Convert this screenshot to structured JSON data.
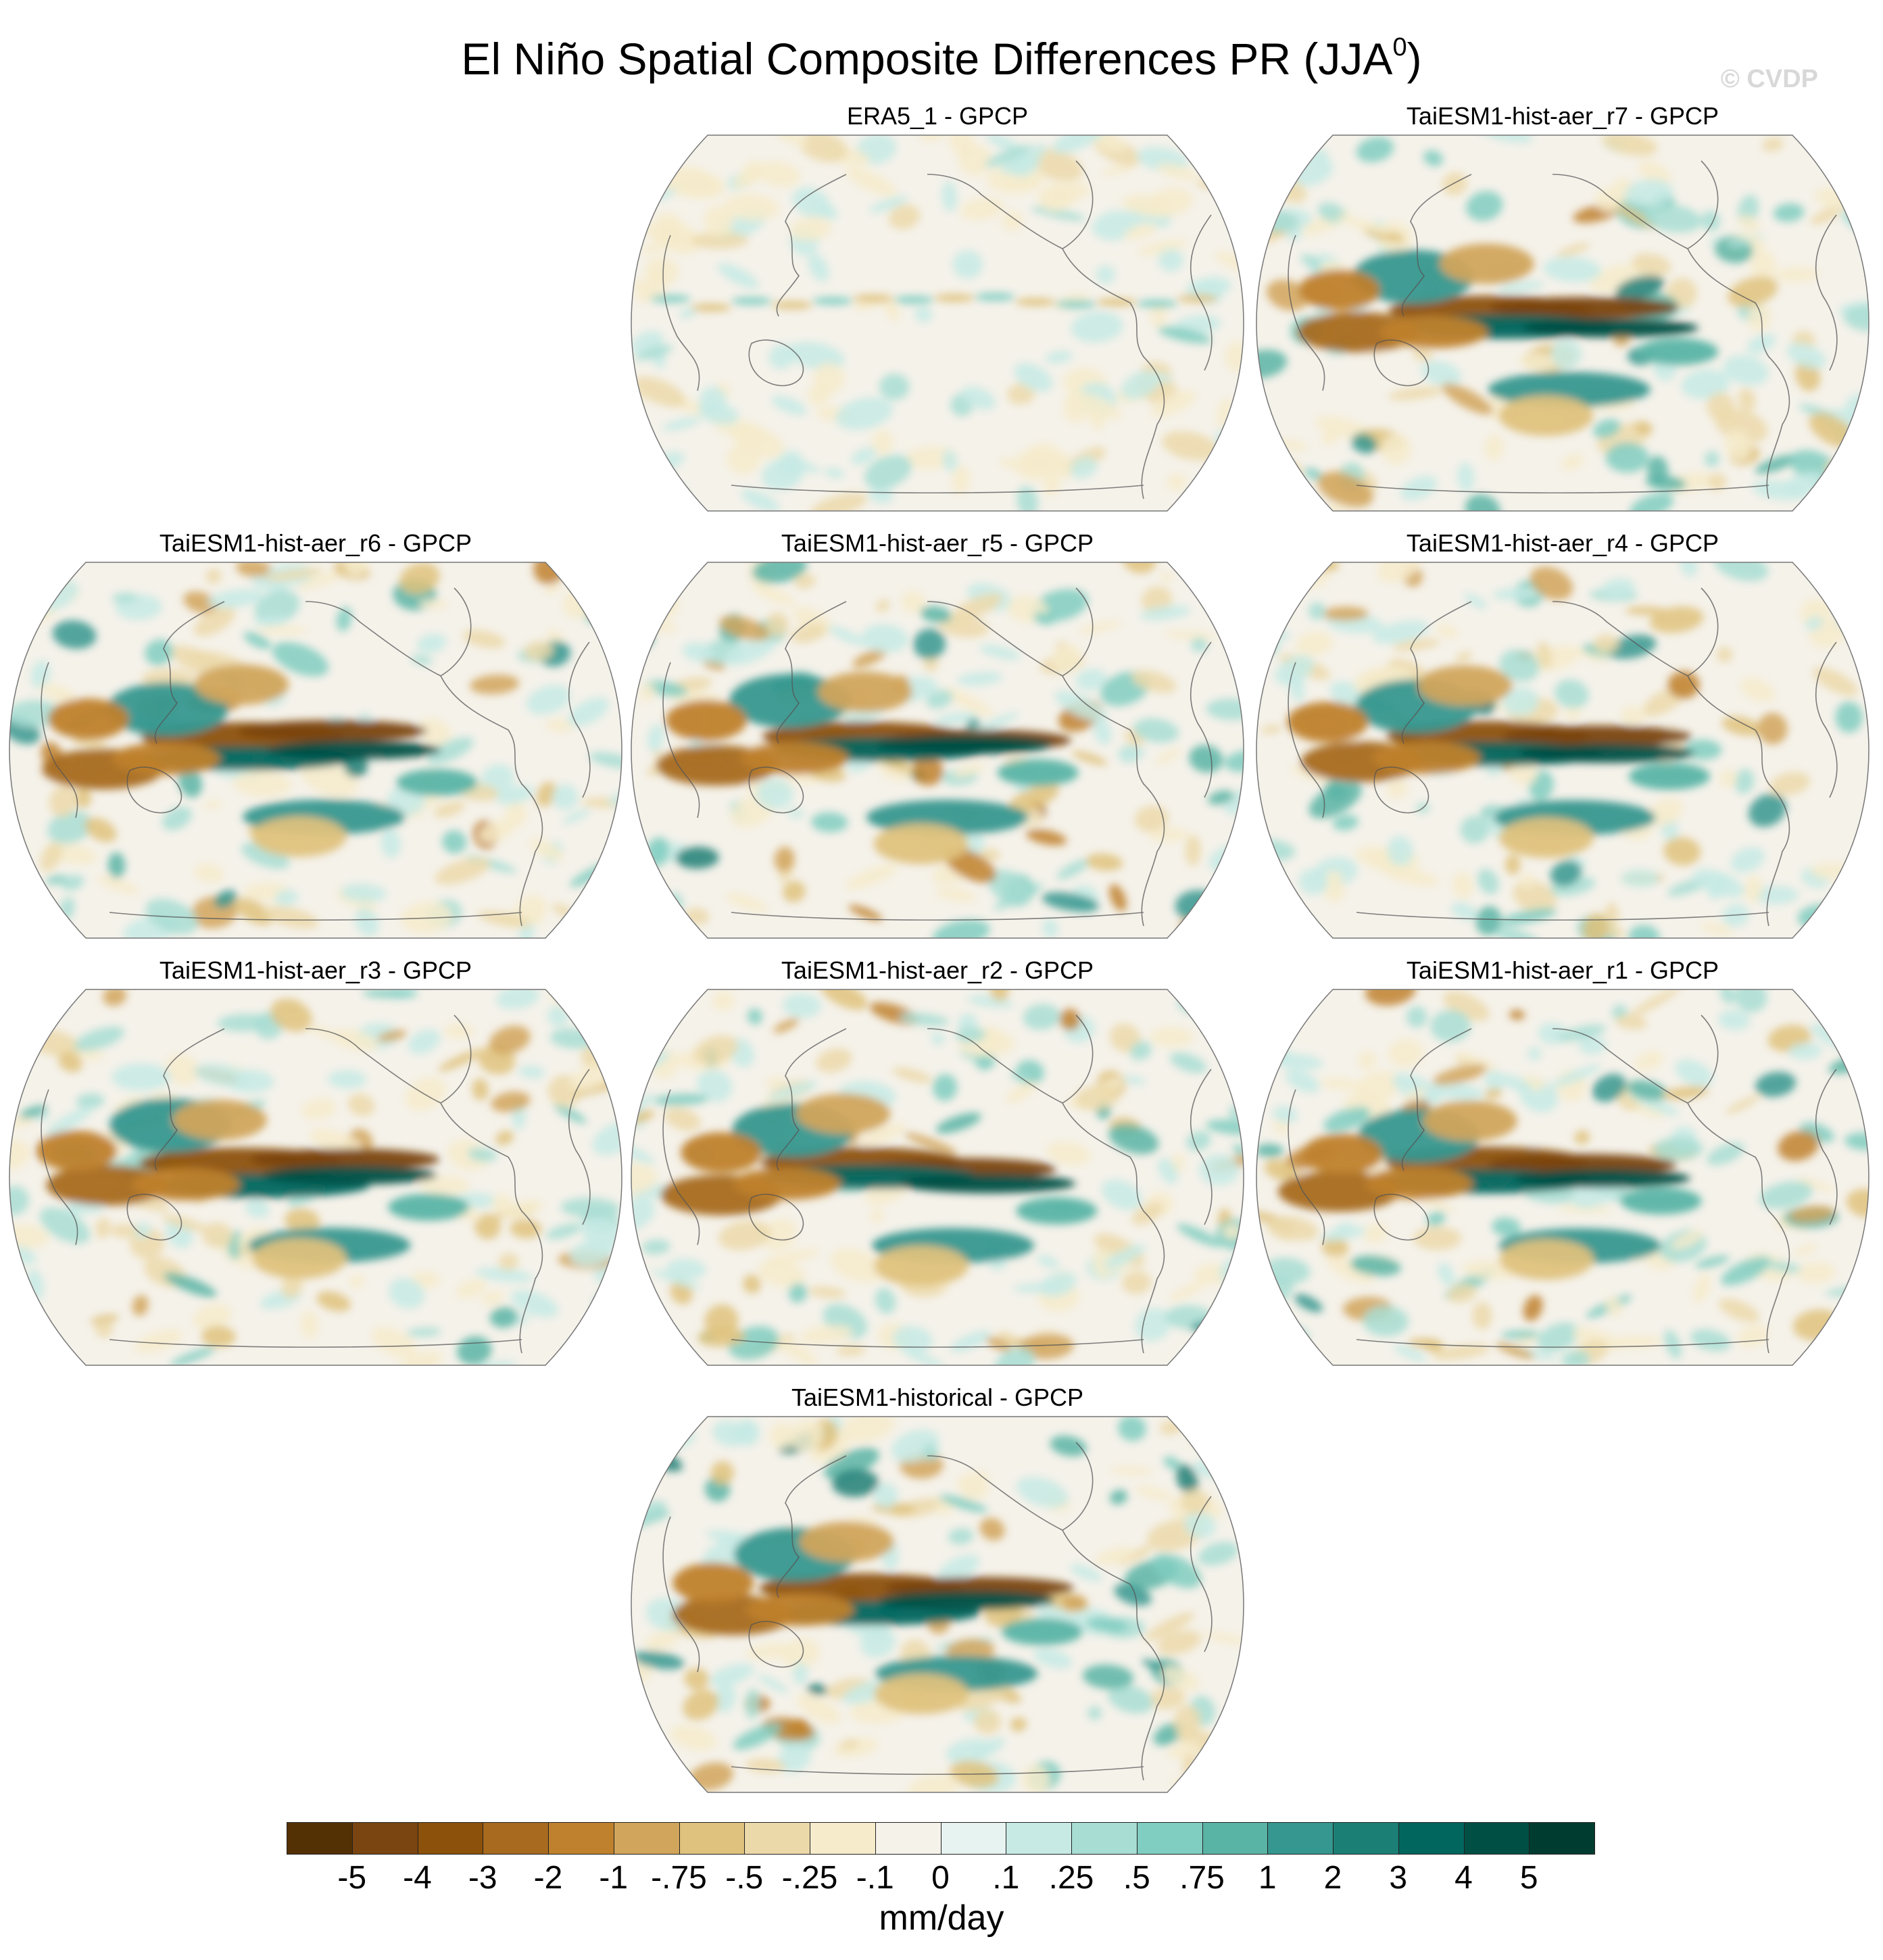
{
  "title": {
    "main": "El Niño Spatial Composite Differences PR (JJA",
    "superscript": "0",
    "close": ")"
  },
  "watermark": "© CVDP",
  "panels": [
    {
      "id": "era5",
      "title": "ERA5_1 - GPCP",
      "intensity": 0.35
    },
    {
      "id": "r7",
      "title": "TaiESM1-hist-aer_r7 - GPCP",
      "intensity": 1.0
    },
    {
      "id": "r6",
      "title": "TaiESM1-hist-aer_r6 - GPCP",
      "intensity": 0.95
    },
    {
      "id": "r5",
      "title": "TaiESM1-hist-aer_r5 - GPCP",
      "intensity": 1.0
    },
    {
      "id": "r4",
      "title": "TaiESM1-hist-aer_r4 - GPCP",
      "intensity": 0.95
    },
    {
      "id": "r3",
      "title": "TaiESM1-hist-aer_r3 - GPCP",
      "intensity": 0.9
    },
    {
      "id": "r2",
      "title": "TaiESM1-hist-aer_r2 - GPCP",
      "intensity": 0.85
    },
    {
      "id": "r1",
      "title": "TaiESM1-hist-aer_r1 - GPCP",
      "intensity": 0.9
    },
    {
      "id": "hist",
      "title": "TaiESM1-historical - GPCP",
      "intensity": 1.0
    }
  ],
  "colorbar": {
    "units": "mm/day",
    "labels": [
      "-5",
      "-4",
      "-3",
      "-2",
      "-1",
      "-.75",
      "-.5",
      "-.25",
      "-.1",
      "0",
      ".1",
      ".25",
      ".5",
      ".75",
      "1",
      "2",
      "3",
      "4",
      "5"
    ],
    "colors": [
      "#543005",
      "#7a4510",
      "#8c510a",
      "#a76a1f",
      "#bf812d",
      "#d1a55c",
      "#dfc27d",
      "#ecd9aa",
      "#f6ebcb",
      "#f5f2ea",
      "#e7f3f1",
      "#c7eae5",
      "#a8ddd4",
      "#80cdc1",
      "#5ab4a6",
      "#35978f",
      "#1c7f76",
      "#01665e",
      "#004f45",
      "#003c30"
    ]
  }
}
